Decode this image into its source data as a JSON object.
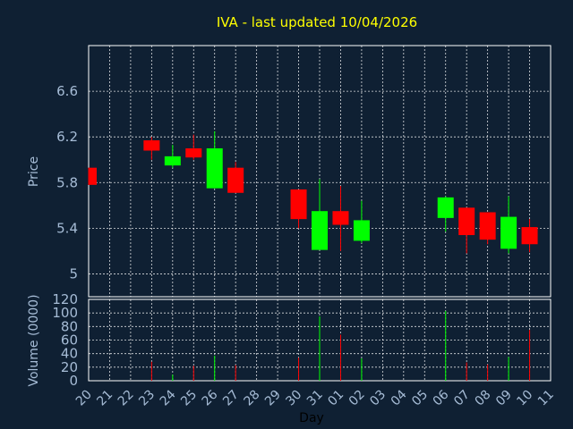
{
  "chart_data": {
    "type": "candlestick",
    "title": "IVA - last updated 10/04/2026",
    "xlabel": "Day",
    "price_panel": {
      "ylabel": "Price",
      "ylim": [
        4.8,
        7.0
      ],
      "yticks": [
        "5",
        "5.4",
        "5.8",
        "6.2",
        "6.6"
      ],
      "ytick_values": [
        5.0,
        5.4,
        5.8,
        6.2,
        6.6
      ],
      "grid": true
    },
    "volume_panel": {
      "ylabel": "Volume (0000)",
      "ylim": [
        0,
        120
      ],
      "yticks": [
        "0",
        "20",
        "40",
        "60",
        "80",
        "100",
        "120"
      ],
      "ytick_values": [
        0,
        20,
        40,
        60,
        80,
        100,
        120
      ],
      "grid": true
    },
    "categories": [
      "20",
      "21",
      "22",
      "23",
      "24",
      "25",
      "26",
      "27",
      "28",
      "29",
      "30",
      "31",
      "01",
      "02",
      "03",
      "04",
      "05",
      "06",
      "07",
      "08",
      "09",
      "10",
      "11"
    ],
    "candles": [
      {
        "day": "20",
        "open": 5.93,
        "high": 5.93,
        "low": 5.78,
        "close": 5.78,
        "volume": 0
      },
      {
        "day": "23",
        "open": 6.17,
        "high": 6.2,
        "low": 6.0,
        "close": 6.08,
        "volume": 28
      },
      {
        "day": "24",
        "open": 5.95,
        "high": 6.13,
        "low": 5.93,
        "close": 6.03,
        "volume": 9
      },
      {
        "day": "25",
        "open": 6.1,
        "high": 6.22,
        "low": 6.0,
        "close": 6.02,
        "volume": 22
      },
      {
        "day": "26",
        "open": 5.75,
        "high": 6.25,
        "low": 5.75,
        "close": 6.1,
        "volume": 37
      },
      {
        "day": "27",
        "open": 5.93,
        "high": 5.98,
        "low": 5.71,
        "close": 5.71,
        "volume": 23
      },
      {
        "day": "30",
        "open": 5.74,
        "high": 5.74,
        "low": 5.4,
        "close": 5.48,
        "volume": 34
      },
      {
        "day": "31",
        "open": 5.21,
        "high": 5.83,
        "low": 5.21,
        "close": 5.55,
        "volume": 95
      },
      {
        "day": "01",
        "open": 5.55,
        "high": 5.77,
        "low": 5.2,
        "close": 5.43,
        "volume": 68
      },
      {
        "day": "02",
        "open": 5.29,
        "high": 5.64,
        "low": 5.27,
        "close": 5.47,
        "volume": 33
      },
      {
        "day": "06",
        "open": 5.49,
        "high": 5.68,
        "low": 5.37,
        "close": 5.67,
        "volume": 103
      },
      {
        "day": "07",
        "open": 5.58,
        "high": 5.58,
        "low": 5.18,
        "close": 5.34,
        "volume": 27
      },
      {
        "day": "08",
        "open": 5.54,
        "high": 5.54,
        "low": 5.26,
        "close": 5.3,
        "volume": 24
      },
      {
        "day": "09",
        "open": 5.22,
        "high": 5.68,
        "low": 5.18,
        "close": 5.5,
        "volume": 35
      },
      {
        "day": "10",
        "open": 5.41,
        "high": 5.48,
        "low": 5.19,
        "close": 5.26,
        "volume": 75
      }
    ],
    "colors": {
      "up": "#00ff00",
      "down": "#ff0000",
      "background": "#0f2033",
      "grid": "#ffffff",
      "title": "#ffff00",
      "axis_text": "#a6bcd6"
    }
  }
}
